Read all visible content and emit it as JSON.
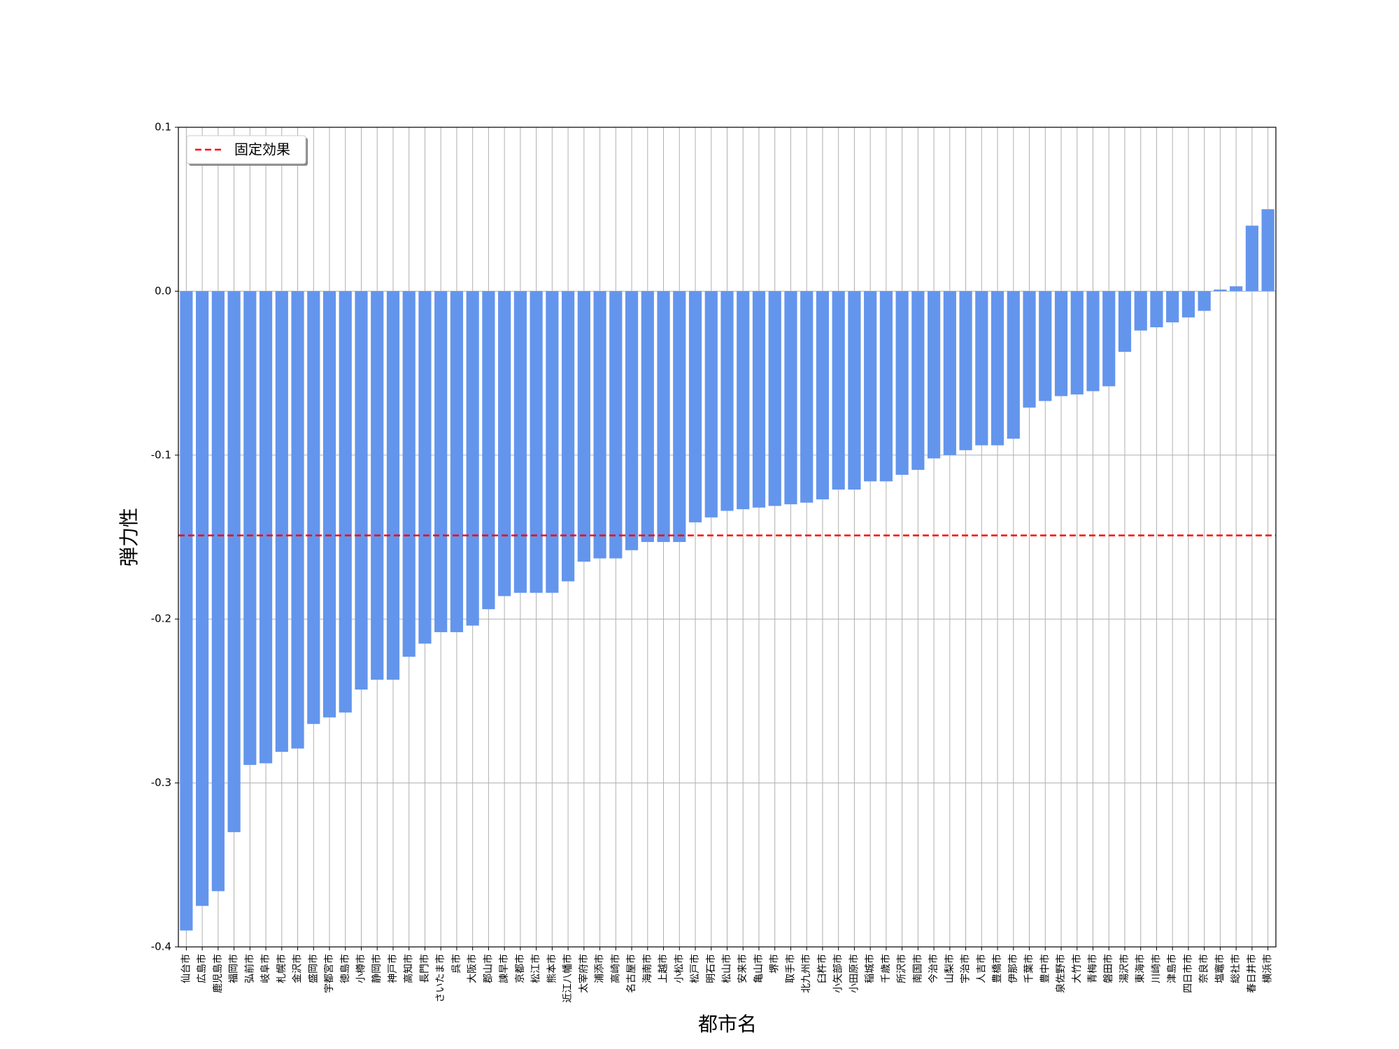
{
  "chart_data": {
    "type": "bar",
    "x_label": "都市名",
    "y_label": "弾力性",
    "categories": [
      "仙台市",
      "広島市",
      "鹿児島市",
      "福岡市",
      "弘前市",
      "岐阜市",
      "札幌市",
      "金沢市",
      "盛岡市",
      "宇都宮市",
      "徳島市",
      "小樽市",
      "静岡市",
      "神戸市",
      "高知市",
      "長門市",
      "さいたま市",
      "呉市",
      "大阪市",
      "郡山市",
      "諫早市",
      "京都市",
      "松江市",
      "熊本市",
      "近江八幡市",
      "太宰府市",
      "浦添市",
      "高崎市",
      "名古屋市",
      "海南市",
      "上越市",
      "小松市",
      "松戸市",
      "明石市",
      "松山市",
      "安来市",
      "亀山市",
      "堺市",
      "取手市",
      "北九州市",
      "臼杵市",
      "小矢部市",
      "小田原市",
      "稲城市",
      "千歳市",
      "所沢市",
      "南国市",
      "今治市",
      "山梨市",
      "宇治市",
      "人吉市",
      "豊橋市",
      "伊那市",
      "千葉市",
      "豊中市",
      "泉佐野市",
      "大竹市",
      "青梅市",
      "磐田市",
      "湯沢市",
      "東海市",
      "川崎市",
      "津島市",
      "四日市市",
      "奈良市",
      "塩竈市",
      "総社市",
      "春日井市",
      "横浜市"
    ],
    "values": [
      -0.39,
      -0.375,
      -0.366,
      -0.33,
      -0.289,
      -0.288,
      -0.281,
      -0.279,
      -0.264,
      -0.26,
      -0.257,
      -0.243,
      -0.237,
      -0.237,
      -0.223,
      -0.215,
      -0.208,
      -0.208,
      -0.204,
      -0.194,
      -0.186,
      -0.184,
      -0.184,
      -0.184,
      -0.177,
      -0.165,
      -0.163,
      -0.163,
      -0.158,
      -0.153,
      -0.153,
      -0.153,
      -0.141,
      -0.138,
      -0.134,
      -0.133,
      -0.132,
      -0.131,
      -0.13,
      -0.129,
      -0.127,
      -0.121,
      -0.121,
      -0.116,
      -0.116,
      -0.112,
      -0.109,
      -0.102,
      -0.1,
      -0.097,
      -0.094,
      -0.094,
      -0.09,
      -0.071,
      -0.067,
      -0.064,
      -0.063,
      -0.061,
      -0.058,
      -0.037,
      -0.024,
      -0.022,
      -0.019,
      -0.016,
      -0.012,
      0.001,
      0.003,
      0.04,
      0.05
    ],
    "color": "#6495ed",
    "reference_line": {
      "name": "固定効果",
      "value": -0.149,
      "color": "#ff0000"
    },
    "legend": "upper left",
    "ylim": [
      -0.4,
      0.1
    ],
    "yticks": [
      0.1,
      {
        "value": 0,
        "label": "0.0"
      },
      -0.1,
      -0.2,
      -0.3,
      -0.4
    ],
    "grid": true
  }
}
